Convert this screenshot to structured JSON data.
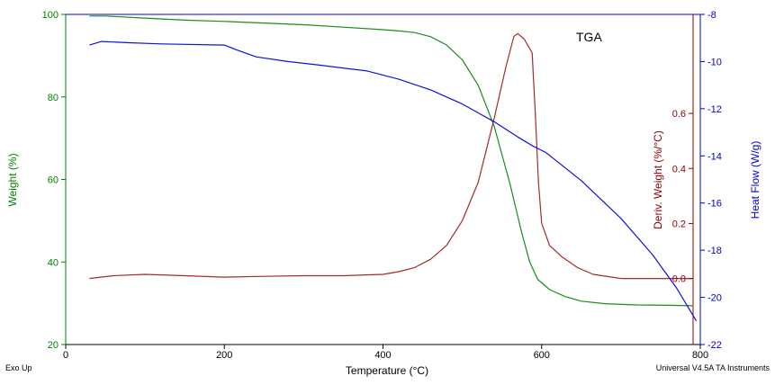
{
  "chart_data": {
    "type": "line",
    "title": "TGA",
    "xlabel": "Temperature (°C)",
    "xlim": [
      0,
      800
    ],
    "x_ticks": [
      0,
      200,
      400,
      600,
      800
    ],
    "grid": false,
    "footer_left": "Exo Up",
    "footer_right": "Universal V4.5A TA Instruments",
    "axes": {
      "weight": {
        "label": "Weight (%)",
        "ylim": [
          20,
          100
        ],
        "ticks": [
          20,
          40,
          60,
          80,
          100
        ],
        "color": "#008000"
      },
      "deriv": {
        "label": "Deriv. Weight (%/°C)",
        "ylim": [
          -0.24,
          0.96
        ],
        "ticks": [
          "0.0",
          "0.2",
          "0.4",
          "0.6"
        ],
        "color": "#8B0000"
      },
      "heatflow": {
        "label": "Heat Flow (W/g)",
        "ylim": [
          -22,
          -8
        ],
        "ticks": [
          -8,
          -10,
          -12,
          -14,
          -16,
          -18,
          -20,
          -22
        ],
        "color": "#0000CC"
      }
    },
    "series": [
      {
        "axis": "weight",
        "color": "#1a8c1a",
        "points": [
          [
            30,
            99.6
          ],
          [
            50,
            99.6
          ],
          [
            100,
            99.1
          ],
          [
            150,
            98.6
          ],
          [
            200,
            98.3
          ],
          [
            250,
            97.9
          ],
          [
            300,
            97.5
          ],
          [
            350,
            96.9
          ],
          [
            400,
            96.3
          ],
          [
            420,
            96.0
          ],
          [
            440,
            95.6
          ],
          [
            460,
            94.6
          ],
          [
            480,
            92.6
          ],
          [
            500,
            89.0
          ],
          [
            520,
            82.8
          ],
          [
            540,
            73.0
          ],
          [
            560,
            59.0
          ],
          [
            575,
            47.0
          ],
          [
            585,
            40.0
          ],
          [
            595,
            35.8
          ],
          [
            610,
            33.3
          ],
          [
            630,
            31.6
          ],
          [
            650,
            30.5
          ],
          [
            680,
            29.9
          ],
          [
            720,
            29.6
          ],
          [
            760,
            29.5
          ],
          [
            790,
            29.4
          ]
        ]
      },
      {
        "axis": "deriv",
        "color": "#a52a2a",
        "points": [
          [
            30,
            0.0
          ],
          [
            60,
            0.01
          ],
          [
            100,
            0.015
          ],
          [
            150,
            0.01
          ],
          [
            200,
            0.005
          ],
          [
            250,
            0.008
          ],
          [
            300,
            0.01
          ],
          [
            350,
            0.01
          ],
          [
            400,
            0.015
          ],
          [
            420,
            0.025
          ],
          [
            440,
            0.04
          ],
          [
            460,
            0.07
          ],
          [
            480,
            0.12
          ],
          [
            500,
            0.21
          ],
          [
            520,
            0.35
          ],
          [
            540,
            0.58
          ],
          [
            555,
            0.77
          ],
          [
            565,
            0.88
          ],
          [
            570,
            0.89
          ],
          [
            578,
            0.87
          ],
          [
            588,
            0.82
          ],
          [
            592,
            0.6
          ],
          [
            596,
            0.35
          ],
          [
            600,
            0.2
          ],
          [
            610,
            0.12
          ],
          [
            625,
            0.08
          ],
          [
            645,
            0.04
          ],
          [
            665,
            0.015
          ],
          [
            700,
            0.0
          ],
          [
            750,
            0.0
          ],
          [
            790,
            0.0
          ]
        ]
      },
      {
        "axis": "heatflow",
        "color": "#1010e0",
        "points": [
          [
            30,
            -9.3
          ],
          [
            45,
            -9.15
          ],
          [
            80,
            -9.2
          ],
          [
            120,
            -9.25
          ],
          [
            200,
            -9.3
          ],
          [
            215,
            -9.5
          ],
          [
            240,
            -9.8
          ],
          [
            280,
            -10.0
          ],
          [
            320,
            -10.15
          ],
          [
            380,
            -10.4
          ],
          [
            420,
            -10.75
          ],
          [
            460,
            -11.2
          ],
          [
            500,
            -11.8
          ],
          [
            540,
            -12.55
          ],
          [
            570,
            -13.2
          ],
          [
            590,
            -13.6
          ],
          [
            605,
            -13.85
          ],
          [
            620,
            -14.25
          ],
          [
            650,
            -15.05
          ],
          [
            700,
            -16.65
          ],
          [
            740,
            -18.2
          ],
          [
            770,
            -19.6
          ],
          [
            795,
            -21.0
          ]
        ]
      }
    ]
  }
}
